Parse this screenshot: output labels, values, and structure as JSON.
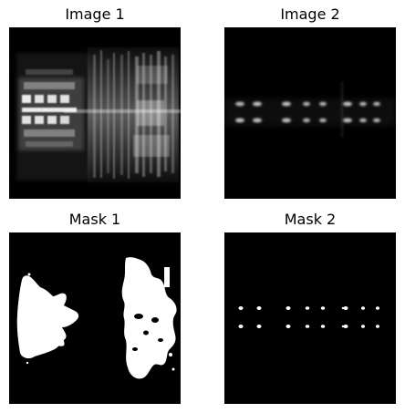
{
  "panels": [
    {
      "title": "Image 1",
      "kind": "grayscale-image"
    },
    {
      "title": "Image 2",
      "kind": "grayscale-image"
    },
    {
      "title": "Mask 1",
      "kind": "binary-mask"
    },
    {
      "title": "Mask 2",
      "kind": "binary-mask"
    }
  ],
  "colors": {
    "background": "#ffffff",
    "image_background": "#000000",
    "foreground": "#ffffff",
    "title_text": "#000000"
  }
}
